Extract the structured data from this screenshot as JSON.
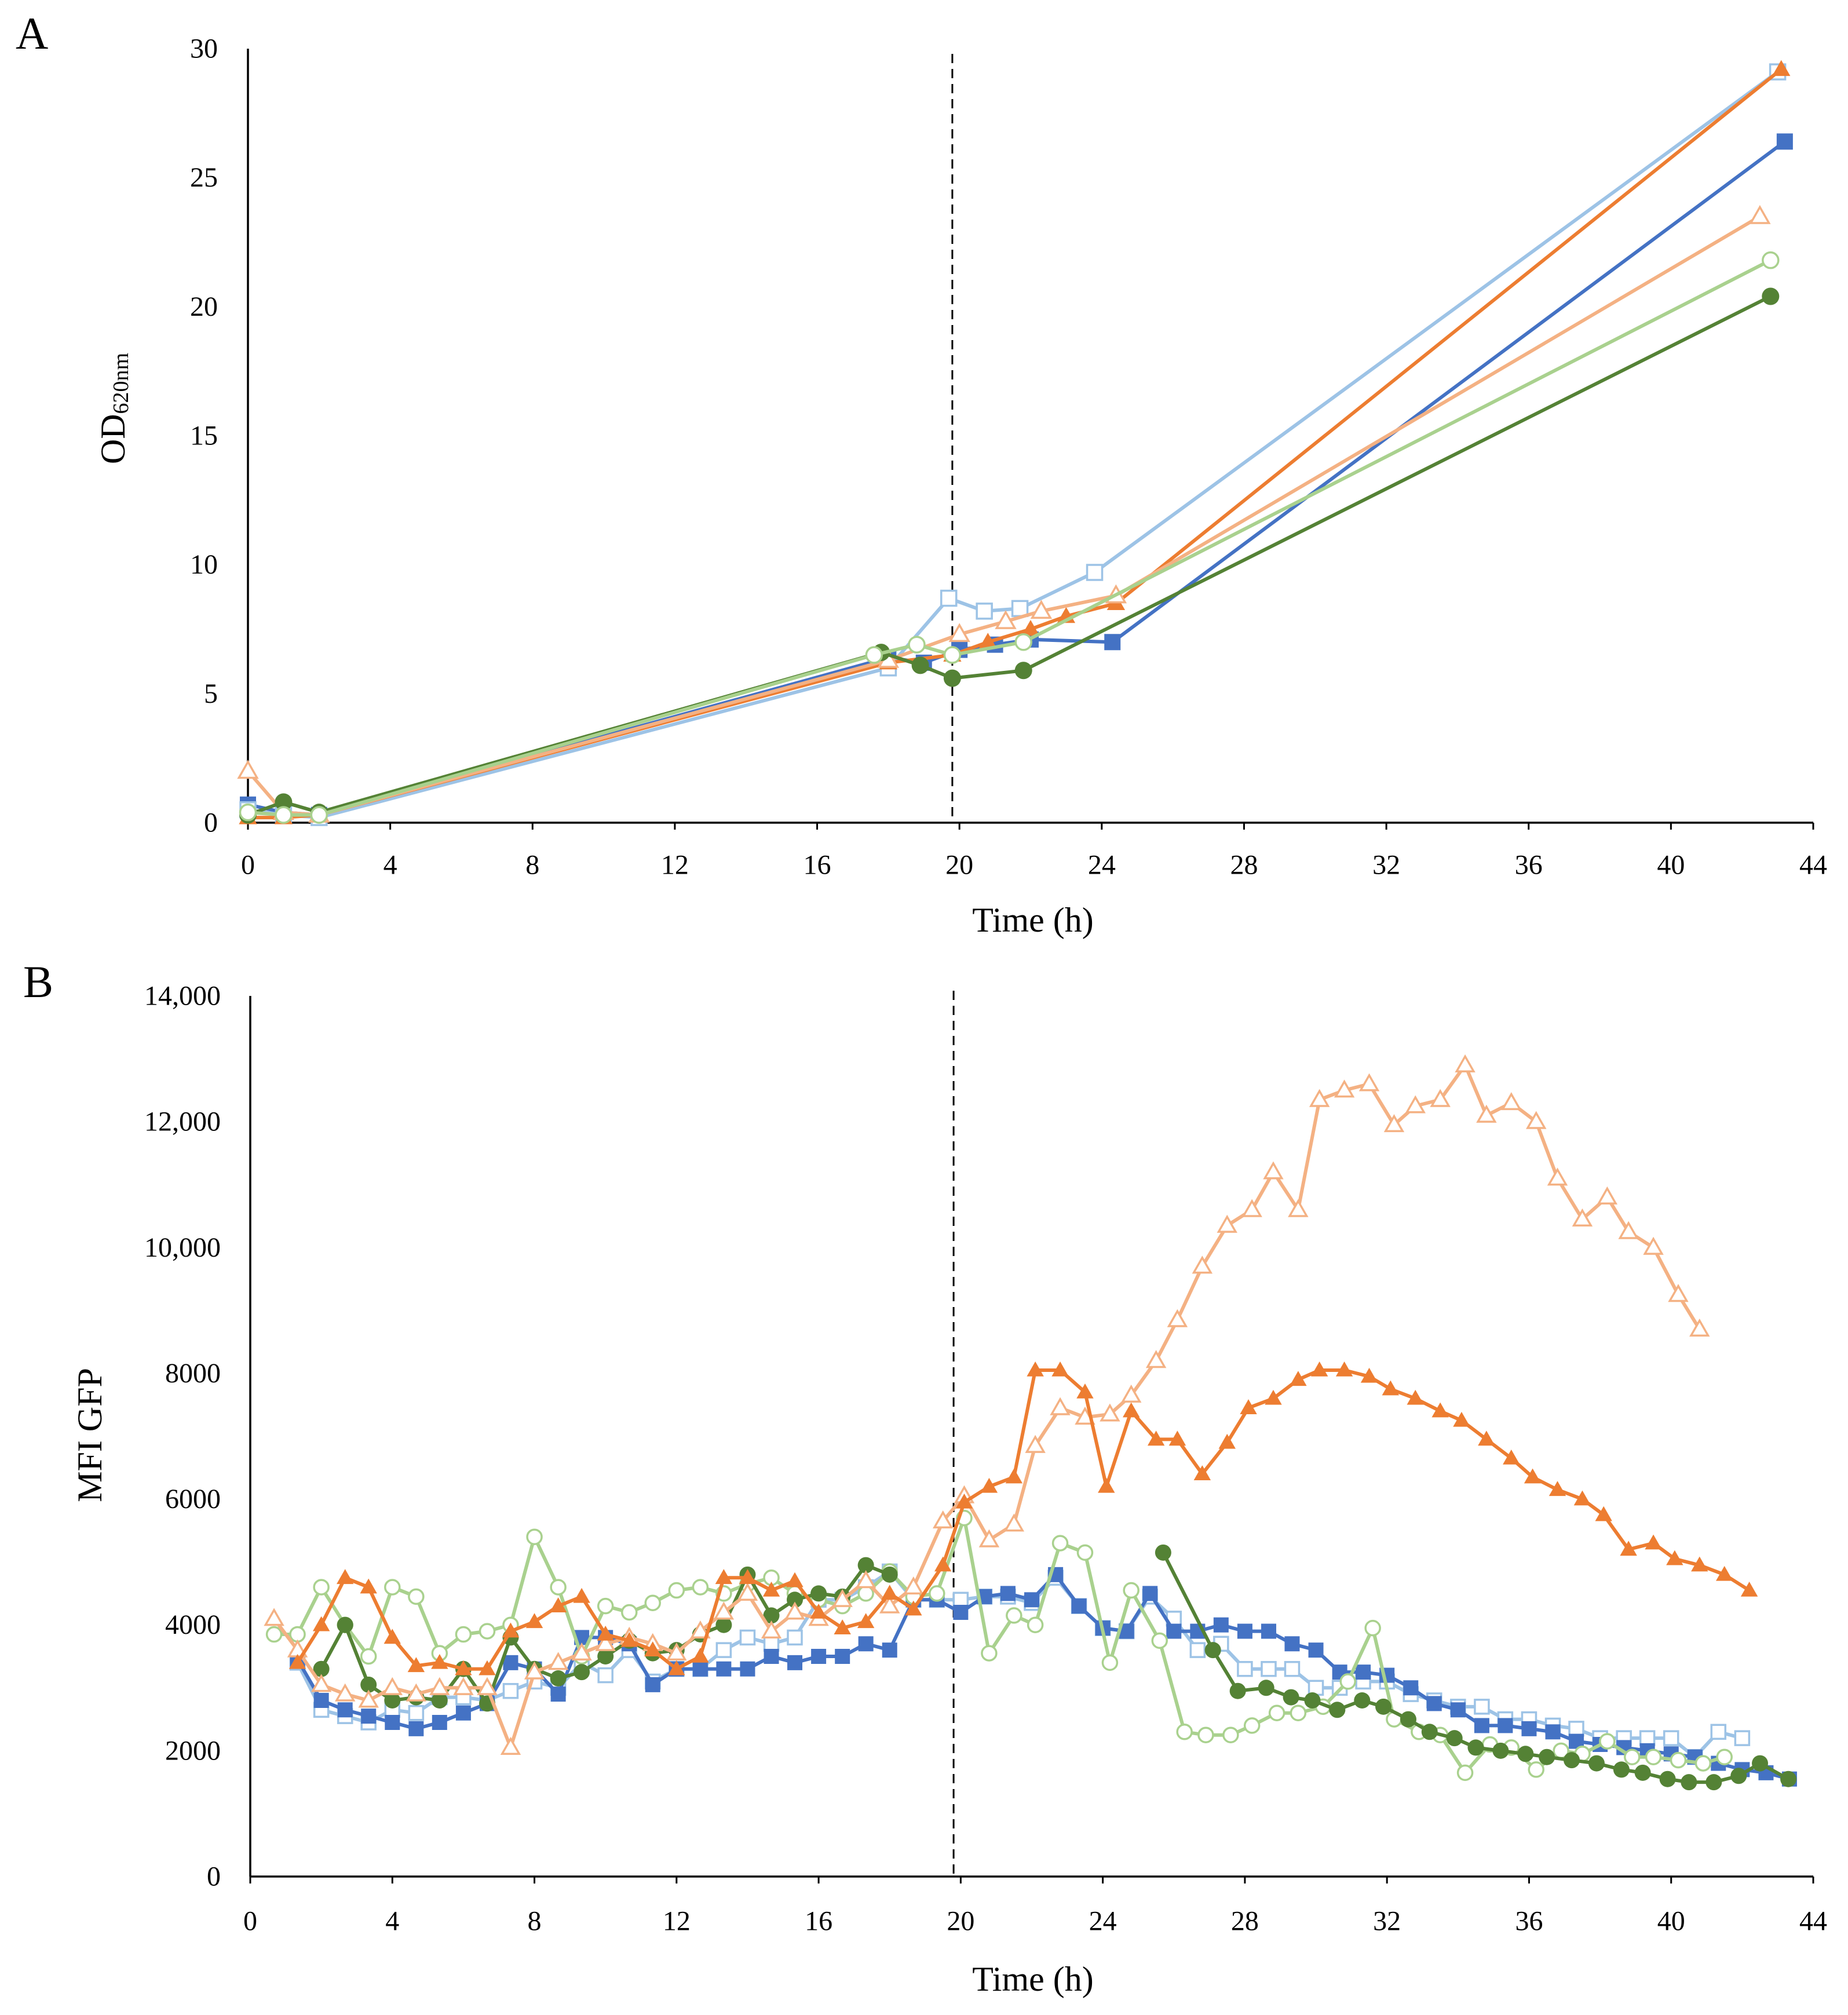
{
  "chart_data": [
    {
      "panel_label": "A",
      "type": "line",
      "xlabel": "Time (h)",
      "ylabel": "OD",
      "ylabel_subscript": "620nm",
      "xlim": [
        0,
        44
      ],
      "ylim": [
        0,
        30
      ],
      "grid": false,
      "xticks": [
        0,
        4,
        8,
        12,
        16,
        20,
        24,
        28,
        32,
        36,
        40,
        44
      ],
      "xtick_labels": [
        "0",
        "4",
        "8",
        "12",
        "16",
        "20",
        "24",
        "28",
        "32",
        "36",
        "40",
        "44"
      ],
      "yticks": [
        0,
        5,
        10,
        15,
        20,
        25,
        30
      ],
      "ytick_labels": [
        "0",
        "5",
        "10",
        "15",
        "20",
        "25",
        "30"
      ],
      "dashed_vline_x": 19.8,
      "series": [
        {
          "color": "#4472C4",
          "marker": "filled-square",
          "x": [
            0,
            1,
            2,
            18,
            19,
            20,
            21,
            22,
            24.3,
            43.2
          ],
          "y": [
            0.7,
            0.4,
            0.3,
            6.4,
            6.2,
            6.7,
            6.9,
            7.1,
            7.0,
            26.4
          ]
        },
        {
          "color": "#9DC3E6",
          "marker": "open-square",
          "x": [
            0,
            1,
            2,
            18,
            19.7,
            20.7,
            21.7,
            23.8,
            43.0
          ],
          "y": [
            0.5,
            0.3,
            0.2,
            6.0,
            8.7,
            8.2,
            8.3,
            9.7,
            29.1
          ]
        },
        {
          "color": "#ED7D31",
          "marker": "filled-triangle",
          "x": [
            0,
            1,
            2,
            18,
            19.8,
            20.8,
            22.0,
            23.0,
            24.4,
            43.1
          ],
          "y": [
            0.2,
            0.2,
            0.3,
            6.2,
            6.5,
            7.0,
            7.5,
            8.0,
            8.5,
            29.2
          ]
        },
        {
          "color": "#F4B183",
          "marker": "open-triangle",
          "x": [
            0,
            1,
            2,
            18,
            20.0,
            21.3,
            22.3,
            24.4,
            42.5
          ],
          "y": [
            2.0,
            0.4,
            0.3,
            6.3,
            7.3,
            7.8,
            8.2,
            8.8,
            23.5
          ]
        },
        {
          "color": "#548235",
          "marker": "filled-circle",
          "x": [
            0,
            1,
            2,
            17.8,
            18.9,
            19.8,
            21.8,
            42.8
          ],
          "y": [
            0.3,
            0.8,
            0.4,
            6.6,
            6.1,
            5.6,
            5.9,
            20.4
          ]
        },
        {
          "color": "#A9D18E",
          "marker": "open-circle",
          "x": [
            0,
            1,
            2,
            17.6,
            18.8,
            19.8,
            21.8,
            42.8
          ],
          "y": [
            0.4,
            0.3,
            0.3,
            6.5,
            6.9,
            6.5,
            7.0,
            21.8
          ]
        }
      ]
    },
    {
      "panel_label": "B",
      "type": "line",
      "xlabel": "Time (h)",
      "ylabel": "MFI GFP",
      "xlim": [
        0,
        44
      ],
      "ylim": [
        0,
        14000
      ],
      "grid": false,
      "xticks": [
        0,
        4,
        8,
        12,
        16,
        20,
        24,
        28,
        32,
        36,
        40,
        44
      ],
      "xtick_labels": [
        "0",
        "4",
        "8",
        "12",
        "16",
        "20",
        "24",
        "28",
        "32",
        "36",
        "40",
        "44"
      ],
      "yticks": [
        0,
        2000,
        4000,
        6000,
        8000,
        10000,
        12000,
        14000
      ],
      "ytick_labels": [
        "0",
        "2000",
        "4000",
        "6000",
        "8000",
        "10,000",
        "12,000",
        "14,000"
      ],
      "dashed_vline_x": 19.8,
      "series": [
        {
          "color": "#9DC3E6",
          "marker": "open-square",
          "x": [
            1.33,
            2.0,
            2.67,
            3.33,
            4.0,
            4.67,
            5.33,
            6.0,
            6.67,
            7.33,
            8.0,
            8.67,
            9.33,
            10.0,
            10.67,
            11.33,
            12.0,
            12.67,
            13.33,
            14.0,
            14.67,
            15.33,
            16.0,
            16.67,
            17.33,
            18.0,
            18.67,
            19.33,
            20.0,
            20.67,
            21.33,
            22.0,
            22.67,
            23.33,
            24.0,
            24.67,
            25.33,
            26.0,
            26.67,
            27.33,
            28.0,
            28.67,
            29.33,
            30.0,
            30.67,
            31.33,
            32.0,
            32.67,
            33.33,
            34.0,
            34.67,
            35.33,
            36.0,
            36.67,
            37.33,
            38.0,
            38.67,
            39.33,
            40.0,
            40.67,
            41.33,
            42.0
          ],
          "y": [
            3400,
            2650,
            2550,
            2450,
            2650,
            2600,
            2850,
            2850,
            2800,
            2950,
            3100,
            3000,
            3400,
            3200,
            3600,
            3100,
            3300,
            3300,
            3600,
            3800,
            3700,
            3800,
            4400,
            4400,
            4600,
            4850,
            4400,
            4400,
            4400,
            4450,
            4450,
            4350,
            4750,
            4300,
            3950,
            3900,
            4450,
            4100,
            3600,
            3700,
            3300,
            3300,
            3300,
            3000,
            3000,
            3100,
            3100,
            2900,
            2800,
            2700,
            2700,
            2500,
            2500,
            2400,
            2350,
            2200,
            2200,
            2200,
            2200,
            1900,
            2300,
            2200
          ]
        },
        {
          "color": "#4472C4",
          "marker": "filled-square",
          "x": [
            1.33,
            2.0,
            2.67,
            3.33,
            4.0,
            4.67,
            5.33,
            6.0,
            6.67,
            7.33,
            8.0,
            8.67,
            9.33,
            10.0,
            10.67,
            11.33,
            12.0,
            12.67,
            13.33,
            14.0,
            14.67,
            15.33,
            16.0,
            16.67,
            17.33,
            18.0,
            18.67,
            19.33,
            20.0,
            20.67,
            21.33,
            22.0,
            22.67,
            23.33,
            24.0,
            24.67,
            25.33,
            26.0,
            26.67,
            27.33,
            28.0,
            28.67,
            29.33,
            30.0,
            30.67,
            31.33,
            32.0,
            32.67,
            33.33,
            34.0,
            34.67,
            35.33,
            36.0,
            36.67,
            37.33,
            38.0,
            38.67,
            39.33,
            40.0,
            40.67,
            41.33,
            42.0,
            42.67,
            43.33
          ],
          "y": [
            3450,
            2800,
            2650,
            2550,
            2450,
            2350,
            2450,
            2600,
            2750,
            3400,
            3300,
            2900,
            3800,
            3800,
            3700,
            3050,
            3300,
            3300,
            3300,
            3300,
            3500,
            3400,
            3500,
            3500,
            3700,
            3600,
            4400,
            4400,
            4200,
            4450,
            4500,
            4400,
            4800,
            4300,
            3950,
            3900,
            4500,
            3900,
            3900,
            4000,
            3900,
            3900,
            3700,
            3600,
            3250,
            3250,
            3200,
            3000,
            2750,
            2650,
            2400,
            2400,
            2350,
            2300,
            2150,
            2100,
            2050,
            2000,
            1950,
            1900,
            1800,
            1700,
            1650,
            1550
          ]
        },
        {
          "color": "#A9D18E",
          "marker": "open-circle",
          "x": [
            0.67,
            1.33,
            2.0,
            2.67,
            3.33,
            4.0,
            4.67,
            5.33,
            6.0,
            6.67,
            7.33,
            8.0,
            8.67,
            9.33,
            10.0,
            10.67,
            11.33,
            12.0,
            12.67,
            13.33,
            14.0,
            14.67,
            15.33,
            16.0,
            16.67,
            17.33,
            18.0,
            18.67,
            19.33,
            20.1,
            20.8,
            21.5,
            22.1,
            22.8,
            23.5,
            24.2,
            24.8,
            25.6,
            26.3,
            26.9,
            27.6,
            28.2,
            28.9,
            29.5,
            30.2,
            30.9,
            31.6,
            32.2,
            32.9,
            33.5,
            34.2,
            34.9,
            35.5,
            36.2,
            36.9,
            37.5,
            38.2,
            38.9,
            39.5,
            40.2,
            40.9,
            41.5
          ],
          "y": [
            3850,
            3850,
            4600,
            4000,
            3500,
            4600,
            4450,
            3550,
            3850,
            3900,
            4000,
            5400,
            4600,
            3500,
            4300,
            4200,
            4350,
            4550,
            4600,
            4500,
            4650,
            4750,
            4500,
            4400,
            4300,
            4500,
            4850,
            4450,
            4500,
            5700,
            3550,
            4150,
            4000,
            5300,
            5150,
            3400,
            4550,
            3750,
            2300,
            2250,
            2250,
            2400,
            2600,
            2600,
            2700,
            3100,
            3950,
            2500,
            2300,
            2250,
            1650,
            2100,
            2050,
            1700,
            2000,
            1950,
            2150,
            1900,
            1900,
            1850,
            1800,
            1900
          ]
        },
        {
          "color": "#548235",
          "marker": "filled-circle",
          "x": [
            2.0,
            2.67,
            3.33,
            4.0,
            4.67,
            5.33,
            6.0,
            6.67,
            7.33,
            8.0,
            8.67,
            9.33,
            10.0,
            10.67,
            11.33,
            12.0,
            12.67,
            13.33,
            14.0,
            14.67,
            15.33,
            16.0,
            16.67,
            17.33,
            18.0,
            21.8,
            25.7,
            27.1,
            27.8,
            28.6,
            29.3,
            29.9,
            30.6,
            31.3,
            31.9,
            32.6,
            33.2,
            33.9,
            34.5,
            35.2,
            35.9,
            36.5,
            37.2,
            37.9,
            38.6,
            39.2,
            39.9,
            40.5,
            41.2,
            41.9,
            42.5,
            43.3
          ],
          "y": [
            3300,
            4000,
            3050,
            2800,
            2850,
            2800,
            3300,
            2750,
            3800,
            3300,
            3150,
            3250,
            3500,
            3750,
            3550,
            3600,
            3850,
            4000,
            4800,
            4150,
            4400,
            4500,
            4450,
            4950,
            4800,
            null,
            5150,
            3600,
            2950,
            3000,
            2850,
            2800,
            2650,
            2800,
            2700,
            2500,
            2300,
            2200,
            2050,
            2000,
            1950,
            1900,
            1850,
            1800,
            1700,
            1650,
            1550,
            1500,
            1500,
            1600,
            1800,
            1550
          ]
        },
        {
          "color": "#F4B183",
          "marker": "open-triangle",
          "x": [
            0.67,
            1.33,
            2.0,
            2.67,
            3.33,
            4.0,
            4.67,
            5.33,
            6.0,
            6.67,
            7.33,
            8.0,
            8.67,
            9.33,
            10.0,
            10.67,
            11.33,
            12.0,
            12.67,
            13.33,
            14.0,
            14.67,
            15.33,
            16.0,
            16.67,
            17.33,
            18.0,
            18.67,
            19.5,
            20.1,
            20.8,
            21.5,
            22.1,
            22.8,
            23.5,
            24.2,
            24.8,
            25.5,
            26.1,
            26.8,
            27.5,
            28.2,
            28.8,
            29.5,
            30.1,
            30.8,
            31.5,
            32.2,
            32.8,
            33.5,
            34.2,
            34.8,
            35.5,
            36.2,
            36.8,
            37.5,
            38.2,
            38.8,
            39.5,
            40.2,
            40.8
          ],
          "y": [
            4100,
            3600,
            3050,
            2900,
            2800,
            3000,
            2900,
            3000,
            3000,
            3000,
            2050,
            3250,
            3400,
            3550,
            3700,
            3800,
            3700,
            3550,
            3900,
            4200,
            4500,
            3900,
            4200,
            4100,
            4400,
            4700,
            4300,
            4600,
            5650,
            6050,
            5350,
            5600,
            6850,
            7450,
            7300,
            7350,
            7650,
            8200,
            8850,
            9700,
            10350,
            10600,
            11200,
            10600,
            12350,
            12500,
            12600,
            11950,
            12250,
            12350,
            12900,
            12100,
            12300,
            12000,
            11100,
            10450,
            10800,
            10250,
            10000,
            9250,
            8700
          ]
        },
        {
          "color": "#ED7D31",
          "marker": "filled-triangle",
          "x": [
            1.33,
            2.0,
            2.67,
            3.33,
            4.0,
            4.67,
            5.33,
            6.0,
            6.67,
            7.33,
            8.0,
            8.67,
            9.33,
            10.0,
            10.67,
            11.33,
            12.0,
            12.67,
            13.33,
            14.0,
            14.67,
            15.33,
            16.0,
            16.67,
            17.33,
            18.0,
            18.67,
            19.5,
            20.1,
            20.8,
            21.5,
            22.1,
            22.8,
            23.5,
            24.1,
            24.8,
            25.5,
            26.1,
            26.8,
            27.5,
            28.1,
            28.8,
            29.5,
            30.1,
            30.8,
            31.5,
            32.1,
            32.8,
            33.5,
            34.1,
            34.8,
            35.5,
            36.1,
            36.8,
            37.5,
            38.1,
            38.8,
            39.5,
            40.1,
            40.8,
            41.5,
            42.2
          ],
          "y": [
            3400,
            4000,
            4750,
            4600,
            3800,
            3350,
            3400,
            3300,
            3300,
            3900,
            4050,
            4300,
            4450,
            3850,
            3750,
            3600,
            3300,
            3500,
            4750,
            4750,
            4550,
            4700,
            4200,
            3950,
            4050,
            4500,
            4250,
            4950,
            5950,
            6200,
            6350,
            8050,
            8050,
            7700,
            6200,
            7400,
            6950,
            6950,
            6400,
            6900,
            7450,
            7600,
            7900,
            8050,
            8050,
            7950,
            7750,
            7600,
            7400,
            7250,
            6950,
            6650,
            6350,
            6150,
            6000,
            5750,
            5200,
            5300,
            5050,
            4950,
            4800,
            4550
          ]
        }
      ]
    }
  ]
}
